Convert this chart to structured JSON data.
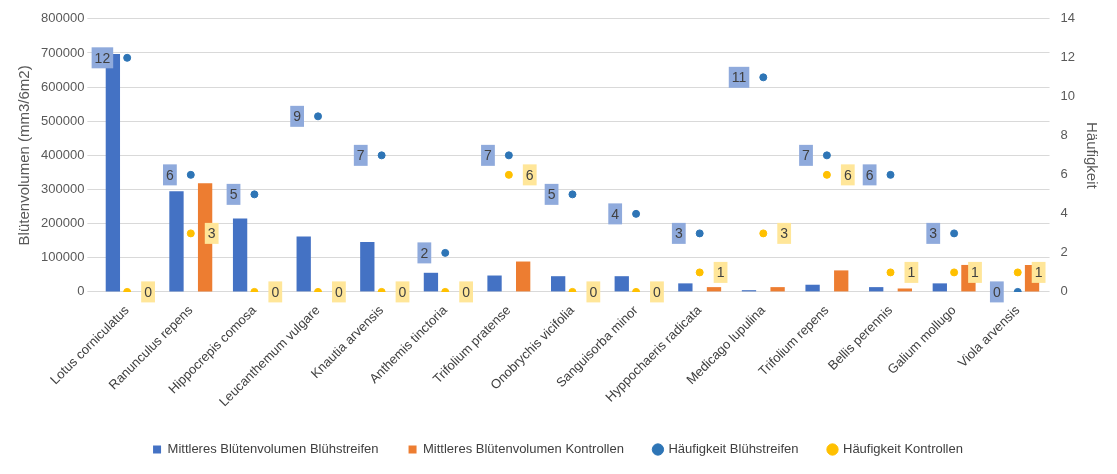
{
  "chart_data": {
    "type": "bar",
    "ylabel": "Blütenvolumen (mm3/6m2)",
    "y2label": "Häufigkeit",
    "categories": [
      "Lotus corniculatus",
      "Ranunculus repens",
      "Hippocrepis comosa",
      "Leucanthemum vulgare",
      "Knautia arvensis",
      "Anthemis tinctoria",
      "Trifolium pratense",
      "Onobrychis vicifolia",
      "Sanguisorba minor",
      "Hyppochaeris radicata",
      "Medicago lupulina",
      "Trifolium repens",
      "Bellis perennis",
      "Galium mollugo",
      "Viola arvensis"
    ],
    "series": [
      {
        "name": "Mittleres Blütenvolumen Blühstreifen",
        "color": "#4472c4",
        "values": [
          697000,
          295000,
          215000,
          162000,
          146000,
          56000,
          48000,
          46000,
          46000,
          25000,
          5000,
          21000,
          14000,
          25000,
          0
        ]
      },
      {
        "name": "Mittleres Blütenvolumen Kontrollen",
        "color": "#ed7d31",
        "values": [
          0,
          318000,
          0,
          0,
          0,
          0,
          89000,
          0,
          0,
          14000,
          14000,
          63000,
          10000,
          79000,
          79000
        ]
      },
      {
        "name": "Häufigkeit Blühstreifen",
        "type": "scatter",
        "axis": "y2",
        "color": "#2e75b6",
        "values": [
          12,
          6,
          5,
          9,
          7,
          2,
          7,
          5,
          4,
          3,
          11,
          7,
          6,
          3,
          0
        ],
        "value_labels": [
          "12",
          "6",
          "5",
          "9",
          "7",
          "2",
          "7",
          "5",
          "4",
          "3",
          "11",
          "7",
          "6",
          "3",
          "0"
        ]
      },
      {
        "name": "Häufigkeit Kontrollen",
        "type": "scatter",
        "axis": "y2",
        "color": "#ffc000",
        "values": [
          0,
          3,
          0,
          0,
          0,
          0,
          6,
          0,
          0,
          1,
          3,
          6,
          1,
          1,
          1
        ],
        "value_labels": [
          "0",
          "3",
          "0",
          "0",
          "0",
          "0",
          "6",
          "0",
          "0",
          "1",
          "3",
          "6",
          "1",
          "1",
          "1"
        ]
      }
    ],
    "ylim": [
      0,
      800000
    ],
    "yticks": [
      0,
      100000,
      200000,
      300000,
      400000,
      500000,
      600000,
      700000,
      800000
    ],
    "y2lim": [
      0,
      14
    ],
    "y2ticks": [
      0,
      2,
      4,
      6,
      8,
      10,
      12,
      14
    ],
    "grid": "y",
    "legend": "bottom",
    "marker": "circle"
  }
}
